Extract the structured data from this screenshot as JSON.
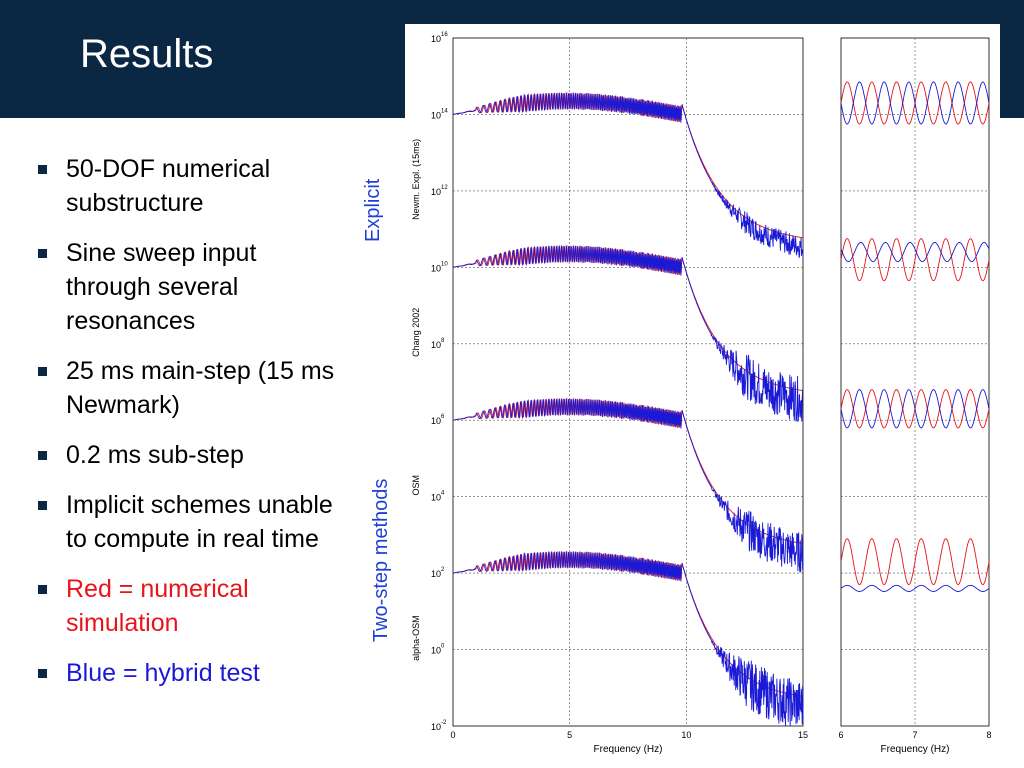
{
  "slide": {
    "title": "Results",
    "bullets": [
      {
        "text": "50-DOF numerical substructure",
        "color": "#000000"
      },
      {
        "text": "Sine sweep input through several resonances",
        "color": "#000000"
      },
      {
        "text": "25 ms main-step (15 ms Newmark)",
        "color": "#000000"
      },
      {
        "text": "0.2 ms sub-step",
        "color": "#000000"
      },
      {
        "text": "Implicit schemes unable to compute in real time",
        "color": "#000000"
      },
      {
        "text": "Red = numerical simulation",
        "color": "#e8141a"
      },
      {
        "text": "Blue = hybrid test",
        "color": "#1a1ad6"
      }
    ],
    "group_labels": {
      "explicit": "Explicit",
      "two_step": "Two-step methods"
    },
    "colors": {
      "header": "#0a2744",
      "numerical": "#e8141a",
      "hybrid": "#1a1ad6",
      "group_label": "#1f3fd6"
    }
  },
  "chart_data": [
    {
      "type": "line",
      "panel": "main",
      "xlabel": "Frequency (Hz)",
      "xlim": [
        0,
        15
      ],
      "x_ticks": [
        "0",
        "5",
        "10",
        "15"
      ],
      "y_scale": "log",
      "ylim_exponent": [
        -2,
        16
      ],
      "y_tick_base": "10",
      "y_tick_exponents": [
        "16",
        "14",
        "12",
        "10",
        "8",
        "6",
        "4",
        "2",
        "0",
        "-2"
      ],
      "grid": true,
      "traces": [
        {
          "label": "Newm. Expl. (15ms)",
          "plateau_exponent": 14.3,
          "tail_exponent": 10.8,
          "blue_noise": 0.5
        },
        {
          "label": "Chang 2002",
          "plateau_exponent": 10.3,
          "tail_exponent": 6.8,
          "blue_noise": 1.0
        },
        {
          "label": "OSM",
          "plateau_exponent": 6.3,
          "tail_exponent": 2.8,
          "blue_noise": 0.9
        },
        {
          "label": "alpha-OSM",
          "plateau_exponent": 2.3,
          "tail_exponent": -1.2,
          "blue_noise": 1.1
        }
      ],
      "series": [
        {
          "name": "Red = numerical simulation",
          "color": "#e8141a"
        },
        {
          "name": "Blue = hybrid test",
          "color": "#1a1ad6"
        }
      ]
    },
    {
      "type": "line",
      "panel": "zoom",
      "xlabel": "Frequency (Hz)",
      "xlim": [
        6,
        8
      ],
      "x_ticks": [
        "6",
        "7",
        "8"
      ],
      "grid": true,
      "rows": [
        {
          "label": "Newm. Expl. (15ms)",
          "red_amp": 0.55,
          "blue_amp": 0.55,
          "blue_phase_shift": 0.5,
          "red_offset": 14.3,
          "blue_offset": 14.3
        },
        {
          "label": "Chang 2002",
          "red_amp": 0.55,
          "blue_amp": 0.25,
          "blue_phase_shift": 0.45,
          "red_offset": 10.2,
          "blue_offset": 10.4
        },
        {
          "label": "OSM",
          "red_amp": 0.5,
          "blue_amp": 0.5,
          "blue_phase_shift": 0.5,
          "red_offset": 6.3,
          "blue_offset": 6.3
        },
        {
          "label": "alpha-OSM",
          "red_amp": 0.6,
          "blue_amp": 0.08,
          "blue_phase_shift": 0.0,
          "red_offset": 2.3,
          "blue_offset": 1.6
        }
      ]
    }
  ]
}
